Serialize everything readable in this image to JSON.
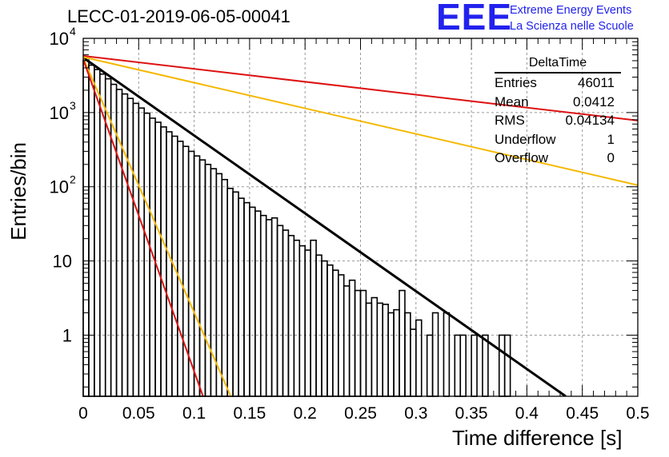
{
  "title": "LECC-01-2019-06-05-00041",
  "logo": {
    "mark": "EEE",
    "line1": "Extreme Energy Events",
    "line2": "La Scienza nelle Scuole",
    "color": "#2222ee"
  },
  "stats_box": {
    "title": "DeltaTime",
    "rows": [
      {
        "label": "Entries",
        "value": "46011"
      },
      {
        "label": "Mean",
        "value": "0.0412"
      },
      {
        "label": "RMS",
        "value": "0.04134"
      },
      {
        "label": "Underflow",
        "value": "1"
      },
      {
        "label": "Overflow",
        "value": "0"
      }
    ]
  },
  "chart_data": {
    "type": "histogram",
    "xlabel": "Time difference [s]",
    "ylabel": "Entries/bin",
    "xlim": [
      0,
      0.5
    ],
    "ylim": [
      0.15,
      10000
    ],
    "yscale": "log",
    "grid": true,
    "xticks": [
      "0",
      "0.05",
      "0.1",
      "0.15",
      "0.2",
      "0.25",
      "0.3",
      "0.35",
      "0.4",
      "0.45",
      "0.5"
    ],
    "yticks": [
      {
        "value": 1,
        "label": "1"
      },
      {
        "value": 10,
        "label": "10"
      },
      {
        "value": 100,
        "label": "10",
        "exp": "2"
      },
      {
        "value": 1000,
        "label": "10",
        "exp": "3"
      },
      {
        "value": 10000,
        "label": "10",
        "exp": "4"
      }
    ],
    "histogram": {
      "bin_width": 0.005,
      "x_start": 0,
      "color": "#000000",
      "counts": [
        5100,
        4350,
        3800,
        3300,
        2850,
        2400,
        2050,
        1780,
        1550,
        1330,
        1150,
        980,
        840,
        740,
        640,
        550,
        480,
        410,
        350,
        300,
        260,
        230,
        200,
        175,
        150,
        125,
        95,
        85,
        70,
        61,
        53,
        47,
        41,
        36,
        38,
        30,
        26,
        22,
        19,
        16,
        14,
        19,
        12,
        10,
        8.8,
        7.5,
        6.5,
        4.6,
        5.5,
        4.0,
        4.0,
        2.7,
        3.2,
        2.7,
        2.6,
        2.0,
        2.2,
        4.0,
        2.0,
        1.2,
        1.6,
        0.1,
        1.0,
        2.0,
        0.1,
        2.0,
        0.1,
        1.0,
        1.0,
        0.1,
        1.0,
        0.1,
        1.0,
        0.1,
        0.1,
        1.0,
        1.0,
        0.1,
        0.1,
        0.1,
        0.1,
        0.1,
        0.1,
        0.1,
        0.1,
        0.1,
        0.1,
        0.1,
        0.1,
        0.1,
        0.1,
        0.1,
        0.1,
        0.1,
        0.1,
        0.1,
        0.1,
        0.1,
        0.1,
        0.1
      ]
    },
    "lines": [
      {
        "color": "#000000",
        "points": [
          [
            0,
            5500
          ],
          [
            0.435,
            0.15
          ]
        ]
      },
      {
        "color": "#dd1111",
        "points": [
          [
            0,
            5800
          ],
          [
            0.5,
            780
          ]
        ]
      },
      {
        "color": "#f5b800",
        "points": [
          [
            0,
            5600
          ],
          [
            0.5,
            105
          ]
        ]
      },
      {
        "color": "#f5b800",
        "points": [
          [
            0,
            5400
          ],
          [
            0.133,
            0.15
          ]
        ]
      },
      {
        "color": "#dd1111",
        "points": [
          [
            0,
            5200
          ],
          [
            0.108,
            0.15
          ]
        ]
      }
    ]
  }
}
